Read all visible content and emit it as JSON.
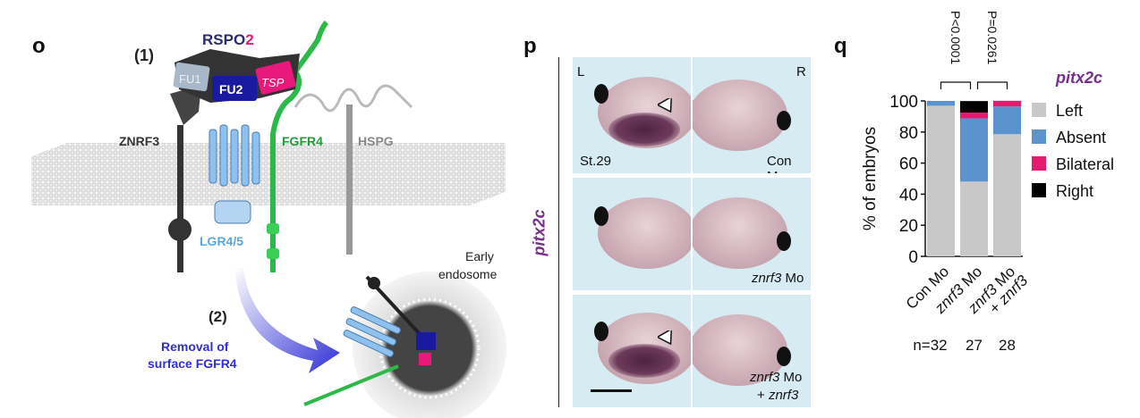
{
  "panel_o": {
    "label": "o",
    "step1": "(1)",
    "rspo2_part1": "RSPO",
    "rspo2_part2": "2",
    "fu1": "FU1",
    "fu2": "FU2",
    "tsp": "TSP",
    "znrf3": "ZNRF3",
    "fgfr4": "FGFR4",
    "hspg": "HSPG",
    "lgr": "LGR4/5",
    "endosome_line1": "Early",
    "endosome_line2": "endosome",
    "step2": "(2)",
    "removal_line1": "Removal of",
    "removal_line2": "surface FGFR4",
    "colors": {
      "znrf3": "#333333",
      "fgfr4": "#1a9e3a",
      "lgr": "#5aa7e0",
      "rspo": "#2b2b6e",
      "tsp": "#e8197a",
      "arrow": "#2f2fd6"
    }
  },
  "panel_p": {
    "label": "p",
    "gene": "pitx2c",
    "left": "L",
    "right": "R",
    "stage": "St.29",
    "rows": [
      {
        "gene": "",
        "suffix": "Con Mo",
        "line2": ""
      },
      {
        "gene": "znrf3",
        "suffix": " Mo",
        "line2": ""
      },
      {
        "gene": "znrf3",
        "suffix": " Mo",
        "line2_prefix": "+ ",
        "line2": "znrf3"
      }
    ]
  },
  "chart_data": {
    "type": "bar",
    "stacked": true,
    "label": "q",
    "legend_title": "pitx2c",
    "ylabel": "% of embryos",
    "ylim": [
      0,
      100
    ],
    "yticks": [
      0,
      20,
      40,
      60,
      80,
      100
    ],
    "categories": [
      "Con Mo",
      "znrf3 Mo",
      "znrf3 Mo + znrf3"
    ],
    "category_parts": [
      {
        "italic": "",
        "plain": "Con Mo",
        "italic2": ""
      },
      {
        "italic": "znrf3",
        "plain": " Mo",
        "italic2": ""
      },
      {
        "italic": "znrf3",
        "plain": " Mo",
        "line2_plain": "+ ",
        "italic2": "znrf3"
      }
    ],
    "series": [
      {
        "name": "Left",
        "color": "#c8c8c8",
        "values": [
          96.9,
          48.1,
          78.6
        ]
      },
      {
        "name": "Absent",
        "color": "#5b93cf",
        "values": [
          3.1,
          40.7,
          17.9
        ]
      },
      {
        "name": "Bilateral",
        "color": "#e8196e",
        "values": [
          0,
          3.7,
          3.6
        ]
      },
      {
        "name": "Right",
        "color": "#000000",
        "values": [
          0,
          7.4,
          0
        ]
      }
    ],
    "legend_position": "right",
    "pvalues": [
      "P<0.0001",
      "P=0.0261"
    ],
    "n_prefix": "n=",
    "n": [
      "32",
      "27",
      "28"
    ]
  }
}
